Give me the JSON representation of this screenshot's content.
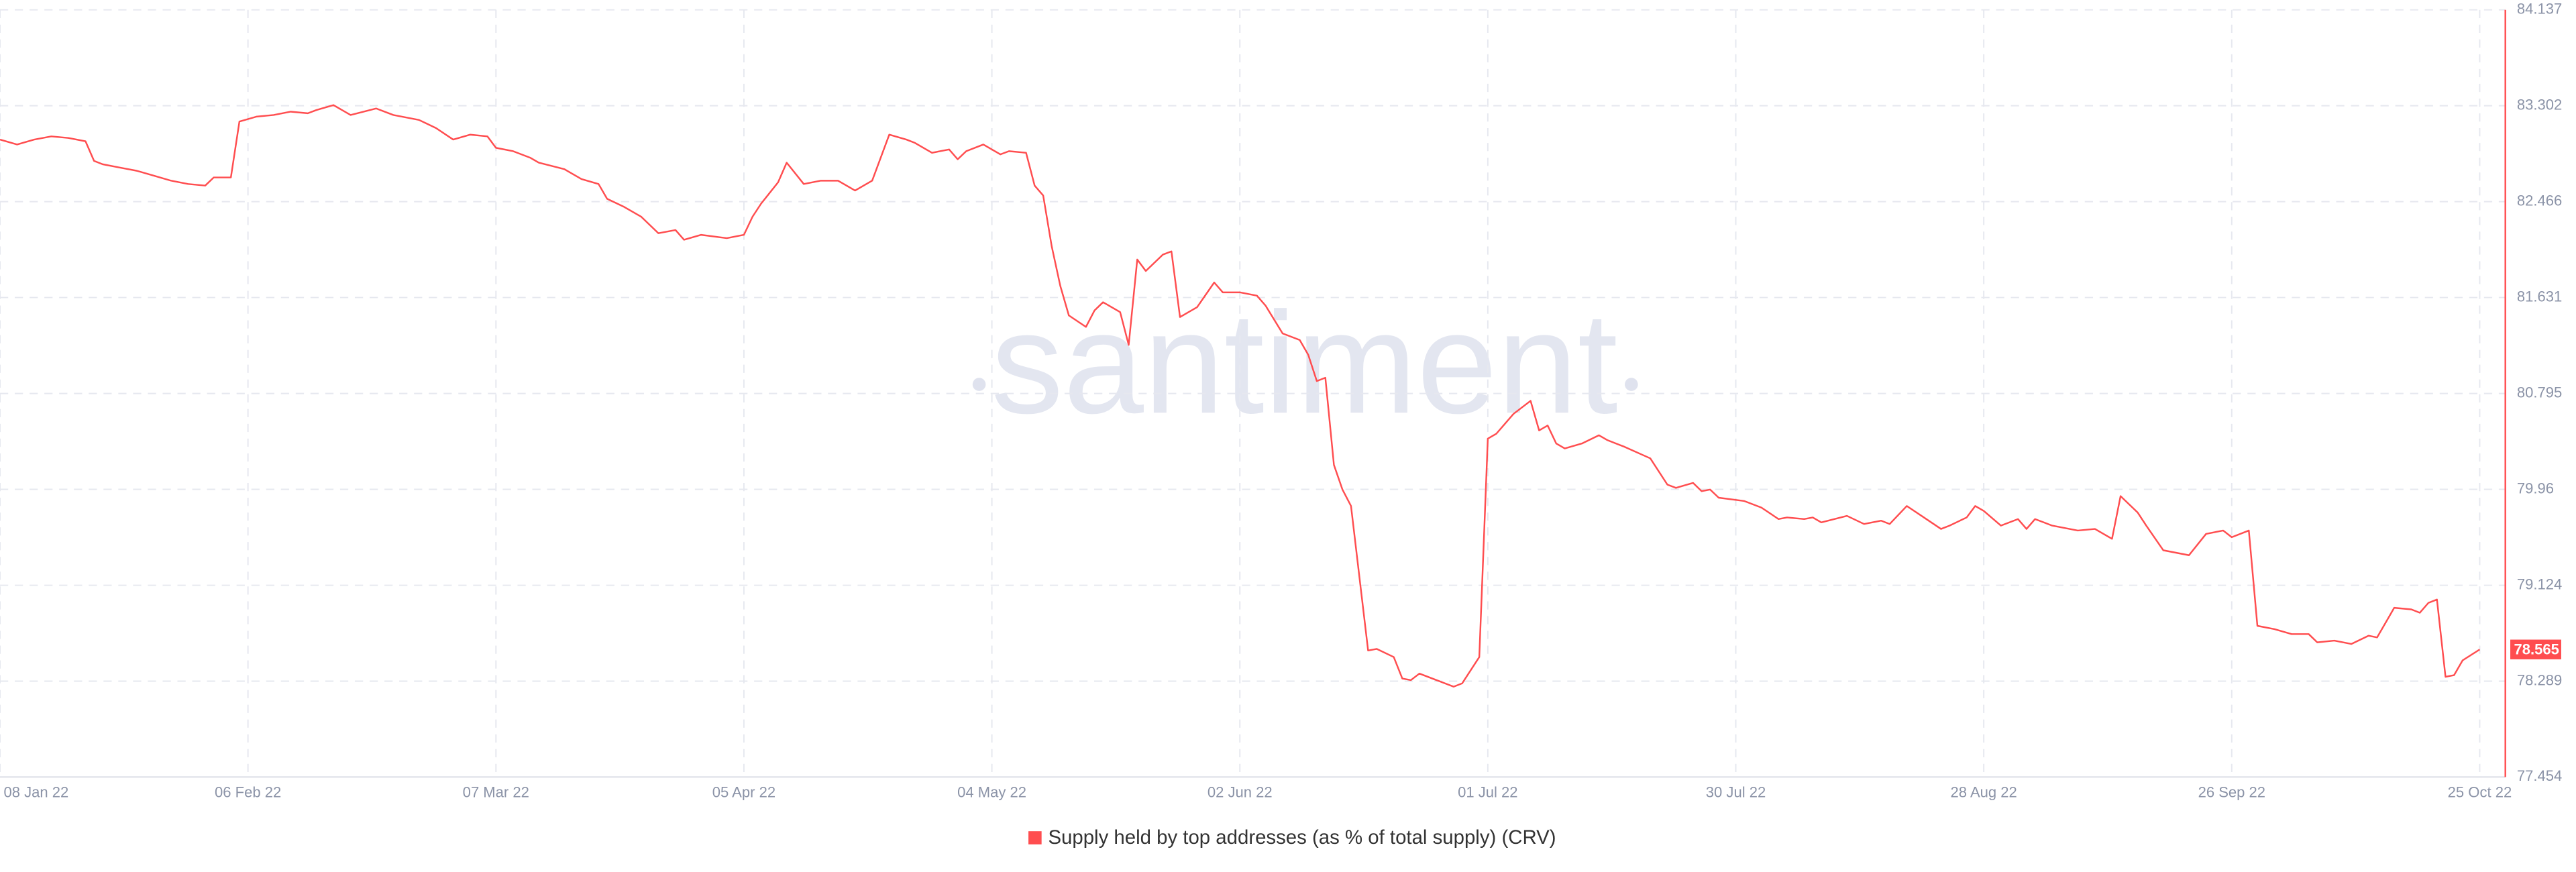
{
  "chart_data": {
    "type": "line",
    "watermark": "santiment",
    "x": [
      "2022-01-08",
      "2022-01-10",
      "2022-01-12",
      "2022-01-14",
      "2022-01-16",
      "2022-01-18",
      "2022-01-19",
      "2022-01-20",
      "2022-01-22",
      "2022-01-24",
      "2022-01-26",
      "2022-01-28",
      "2022-01-30",
      "2022-02-01",
      "2022-02-02",
      "2022-02-04",
      "2022-02-05",
      "2022-02-07",
      "2022-02-09",
      "2022-02-11",
      "2022-02-13",
      "2022-02-14",
      "2022-02-16",
      "2022-02-18",
      "2022-02-21",
      "2022-02-23",
      "2022-02-26",
      "2022-02-28",
      "2022-03-02",
      "2022-03-04",
      "2022-03-06",
      "2022-03-07",
      "2022-03-09",
      "2022-03-11",
      "2022-03-12",
      "2022-03-15",
      "2022-03-17",
      "2022-03-19",
      "2022-03-20",
      "2022-03-22",
      "2022-03-24",
      "2022-03-26",
      "2022-03-28",
      "2022-03-29",
      "2022-03-31",
      "2022-04-03",
      "2022-04-05",
      "2022-04-06",
      "2022-04-07",
      "2022-04-09",
      "2022-04-10",
      "2022-04-12",
      "2022-04-14",
      "2022-04-16",
      "2022-04-18",
      "2022-04-20",
      "2022-04-22",
      "2022-04-24",
      "2022-04-25",
      "2022-04-27",
      "2022-04-29",
      "2022-04-30",
      "2022-05-01",
      "2022-05-03",
      "2022-05-05",
      "2022-05-06",
      "2022-05-08",
      "2022-05-09",
      "2022-05-10",
      "2022-05-11",
      "2022-05-12",
      "2022-05-13",
      "2022-05-15",
      "2022-05-16",
      "2022-05-17",
      "2022-05-19",
      "2022-05-20",
      "2022-05-21",
      "2022-05-22",
      "2022-05-24",
      "2022-05-25",
      "2022-05-26",
      "2022-05-27",
      "2022-05-28",
      "2022-05-30",
      "2022-05-31",
      "2022-06-02",
      "2022-06-04",
      "2022-06-05",
      "2022-06-07",
      "2022-06-09",
      "2022-06-10",
      "2022-06-11",
      "2022-06-12",
      "2022-06-13",
      "2022-06-14",
      "2022-06-15",
      "2022-06-17",
      "2022-06-18",
      "2022-06-20",
      "2022-06-21",
      "2022-06-22",
      "2022-06-23",
      "2022-06-25",
      "2022-06-27",
      "2022-06-28",
      "2022-06-30",
      "2022-07-01",
      "2022-07-02",
      "2022-07-04",
      "2022-07-06",
      "2022-07-07",
      "2022-07-08",
      "2022-07-09",
      "2022-07-10",
      "2022-07-12",
      "2022-07-14",
      "2022-07-15",
      "2022-07-17",
      "2022-07-20",
      "2022-07-22",
      "2022-07-23",
      "2022-07-25",
      "2022-07-26",
      "2022-07-27",
      "2022-07-28",
      "2022-07-31",
      "2022-08-02",
      "2022-08-04",
      "2022-08-05",
      "2022-08-07",
      "2022-08-08",
      "2022-08-09",
      "2022-08-12",
      "2022-08-14",
      "2022-08-16",
      "2022-08-17",
      "2022-08-19",
      "2022-08-21",
      "2022-08-23",
      "2022-08-24",
      "2022-08-26",
      "2022-08-27",
      "2022-08-28",
      "2022-08-30",
      "2022-09-01",
      "2022-09-02",
      "2022-09-03",
      "2022-09-05",
      "2022-09-08",
      "2022-09-10",
      "2022-09-12",
      "2022-09-13",
      "2022-09-15",
      "2022-09-16",
      "2022-09-18",
      "2022-09-21",
      "2022-09-23",
      "2022-09-25",
      "2022-09-26",
      "2022-09-28",
      "2022-09-29",
      "2022-10-01",
      "2022-10-03",
      "2022-10-05",
      "2022-10-06",
      "2022-10-08",
      "2022-10-10",
      "2022-10-12",
      "2022-10-13",
      "2022-10-15",
      "2022-10-17",
      "2022-10-18",
      "2022-10-19",
      "2022-10-20",
      "2022-10-21",
      "2022-10-22",
      "2022-10-23",
      "2022-10-25"
    ],
    "series": [
      {
        "name": "Supply held by top addresses (as % of total supply) (CRV)",
        "color": "#ff4d4f",
        "values": [
          83.007,
          82.964,
          83.007,
          83.035,
          83.021,
          82.992,
          82.821,
          82.792,
          82.763,
          82.735,
          82.692,
          82.649,
          82.62,
          82.606,
          82.677,
          82.677,
          83.164,
          83.207,
          83.221,
          83.25,
          83.236,
          83.264,
          83.307,
          83.221,
          83.278,
          83.221,
          83.178,
          83.107,
          83.007,
          83.05,
          83.035,
          82.935,
          82.906,
          82.849,
          82.806,
          82.749,
          82.663,
          82.62,
          82.491,
          82.42,
          82.334,
          82.191,
          82.219,
          82.134,
          82.177,
          82.148,
          82.177,
          82.334,
          82.448,
          82.635,
          82.806,
          82.62,
          82.649,
          82.649,
          82.563,
          82.649,
          83.05,
          83.007,
          82.978,
          82.892,
          82.921,
          82.835,
          82.906,
          82.964,
          82.878,
          82.906,
          82.892,
          82.606,
          82.52,
          82.076,
          81.733,
          81.475,
          81.375,
          81.518,
          81.59,
          81.504,
          81.218,
          81.962,
          81.862,
          82.005,
          82.033,
          81.461,
          81.504,
          81.547,
          81.762,
          81.676,
          81.676,
          81.647,
          81.561,
          81.318,
          81.261,
          81.132,
          80.903,
          80.932,
          80.173,
          79.958,
          79.815,
          78.556,
          78.57,
          78.499,
          78.312,
          78.298,
          78.355,
          78.298,
          78.241,
          78.27,
          78.499,
          80.402,
          80.445,
          80.617,
          80.731,
          80.473,
          80.516,
          80.359,
          80.316,
          80.359,
          80.431,
          80.388,
          80.33,
          80.23,
          80.001,
          79.973,
          80.016,
          79.944,
          79.958,
          79.887,
          79.858,
          79.801,
          79.701,
          79.715,
          79.701,
          79.715,
          79.672,
          79.729,
          79.658,
          79.687,
          79.658,
          79.815,
          79.715,
          79.615,
          79.644,
          79.715,
          79.815,
          79.772,
          79.644,
          79.701,
          79.615,
          79.701,
          79.644,
          79.601,
          79.615,
          79.529,
          79.901,
          79.758,
          79.644,
          79.429,
          79.386,
          79.572,
          79.601,
          79.543,
          79.601,
          78.771,
          78.742,
          78.699,
          78.699,
          78.627,
          78.642,
          78.613,
          78.685,
          78.67,
          78.928,
          78.914,
          78.885,
          78.971,
          79.0,
          78.327,
          78.341,
          78.47,
          78.565
        ]
      }
    ],
    "xlim": [
      "2022-01-08",
      "2022-10-28"
    ],
    "xticks": [
      {
        "value": "2022-01-08",
        "label": "08 Jan 22"
      },
      {
        "value": "2022-02-06",
        "label": "06 Feb 22"
      },
      {
        "value": "2022-03-07",
        "label": "07 Mar 22"
      },
      {
        "value": "2022-04-05",
        "label": "05 Apr 22"
      },
      {
        "value": "2022-05-04",
        "label": "04 May 22"
      },
      {
        "value": "2022-06-02",
        "label": "02 Jun 22"
      },
      {
        "value": "2022-07-01",
        "label": "01 Jul 22"
      },
      {
        "value": "2022-07-30",
        "label": "30 Jul 22"
      },
      {
        "value": "2022-08-28",
        "label": "28 Aug 22"
      },
      {
        "value": "2022-09-26",
        "label": "26 Sep 22"
      },
      {
        "value": "2022-10-25",
        "label": "25 Oct 22"
      }
    ],
    "ylim": [
      77.454,
      84.137
    ],
    "yticks": [
      77.454,
      78.289,
      79.124,
      79.96,
      80.795,
      81.631,
      82.466,
      83.302,
      84.137
    ],
    "grid": true,
    "legend": "bottom"
  }
}
